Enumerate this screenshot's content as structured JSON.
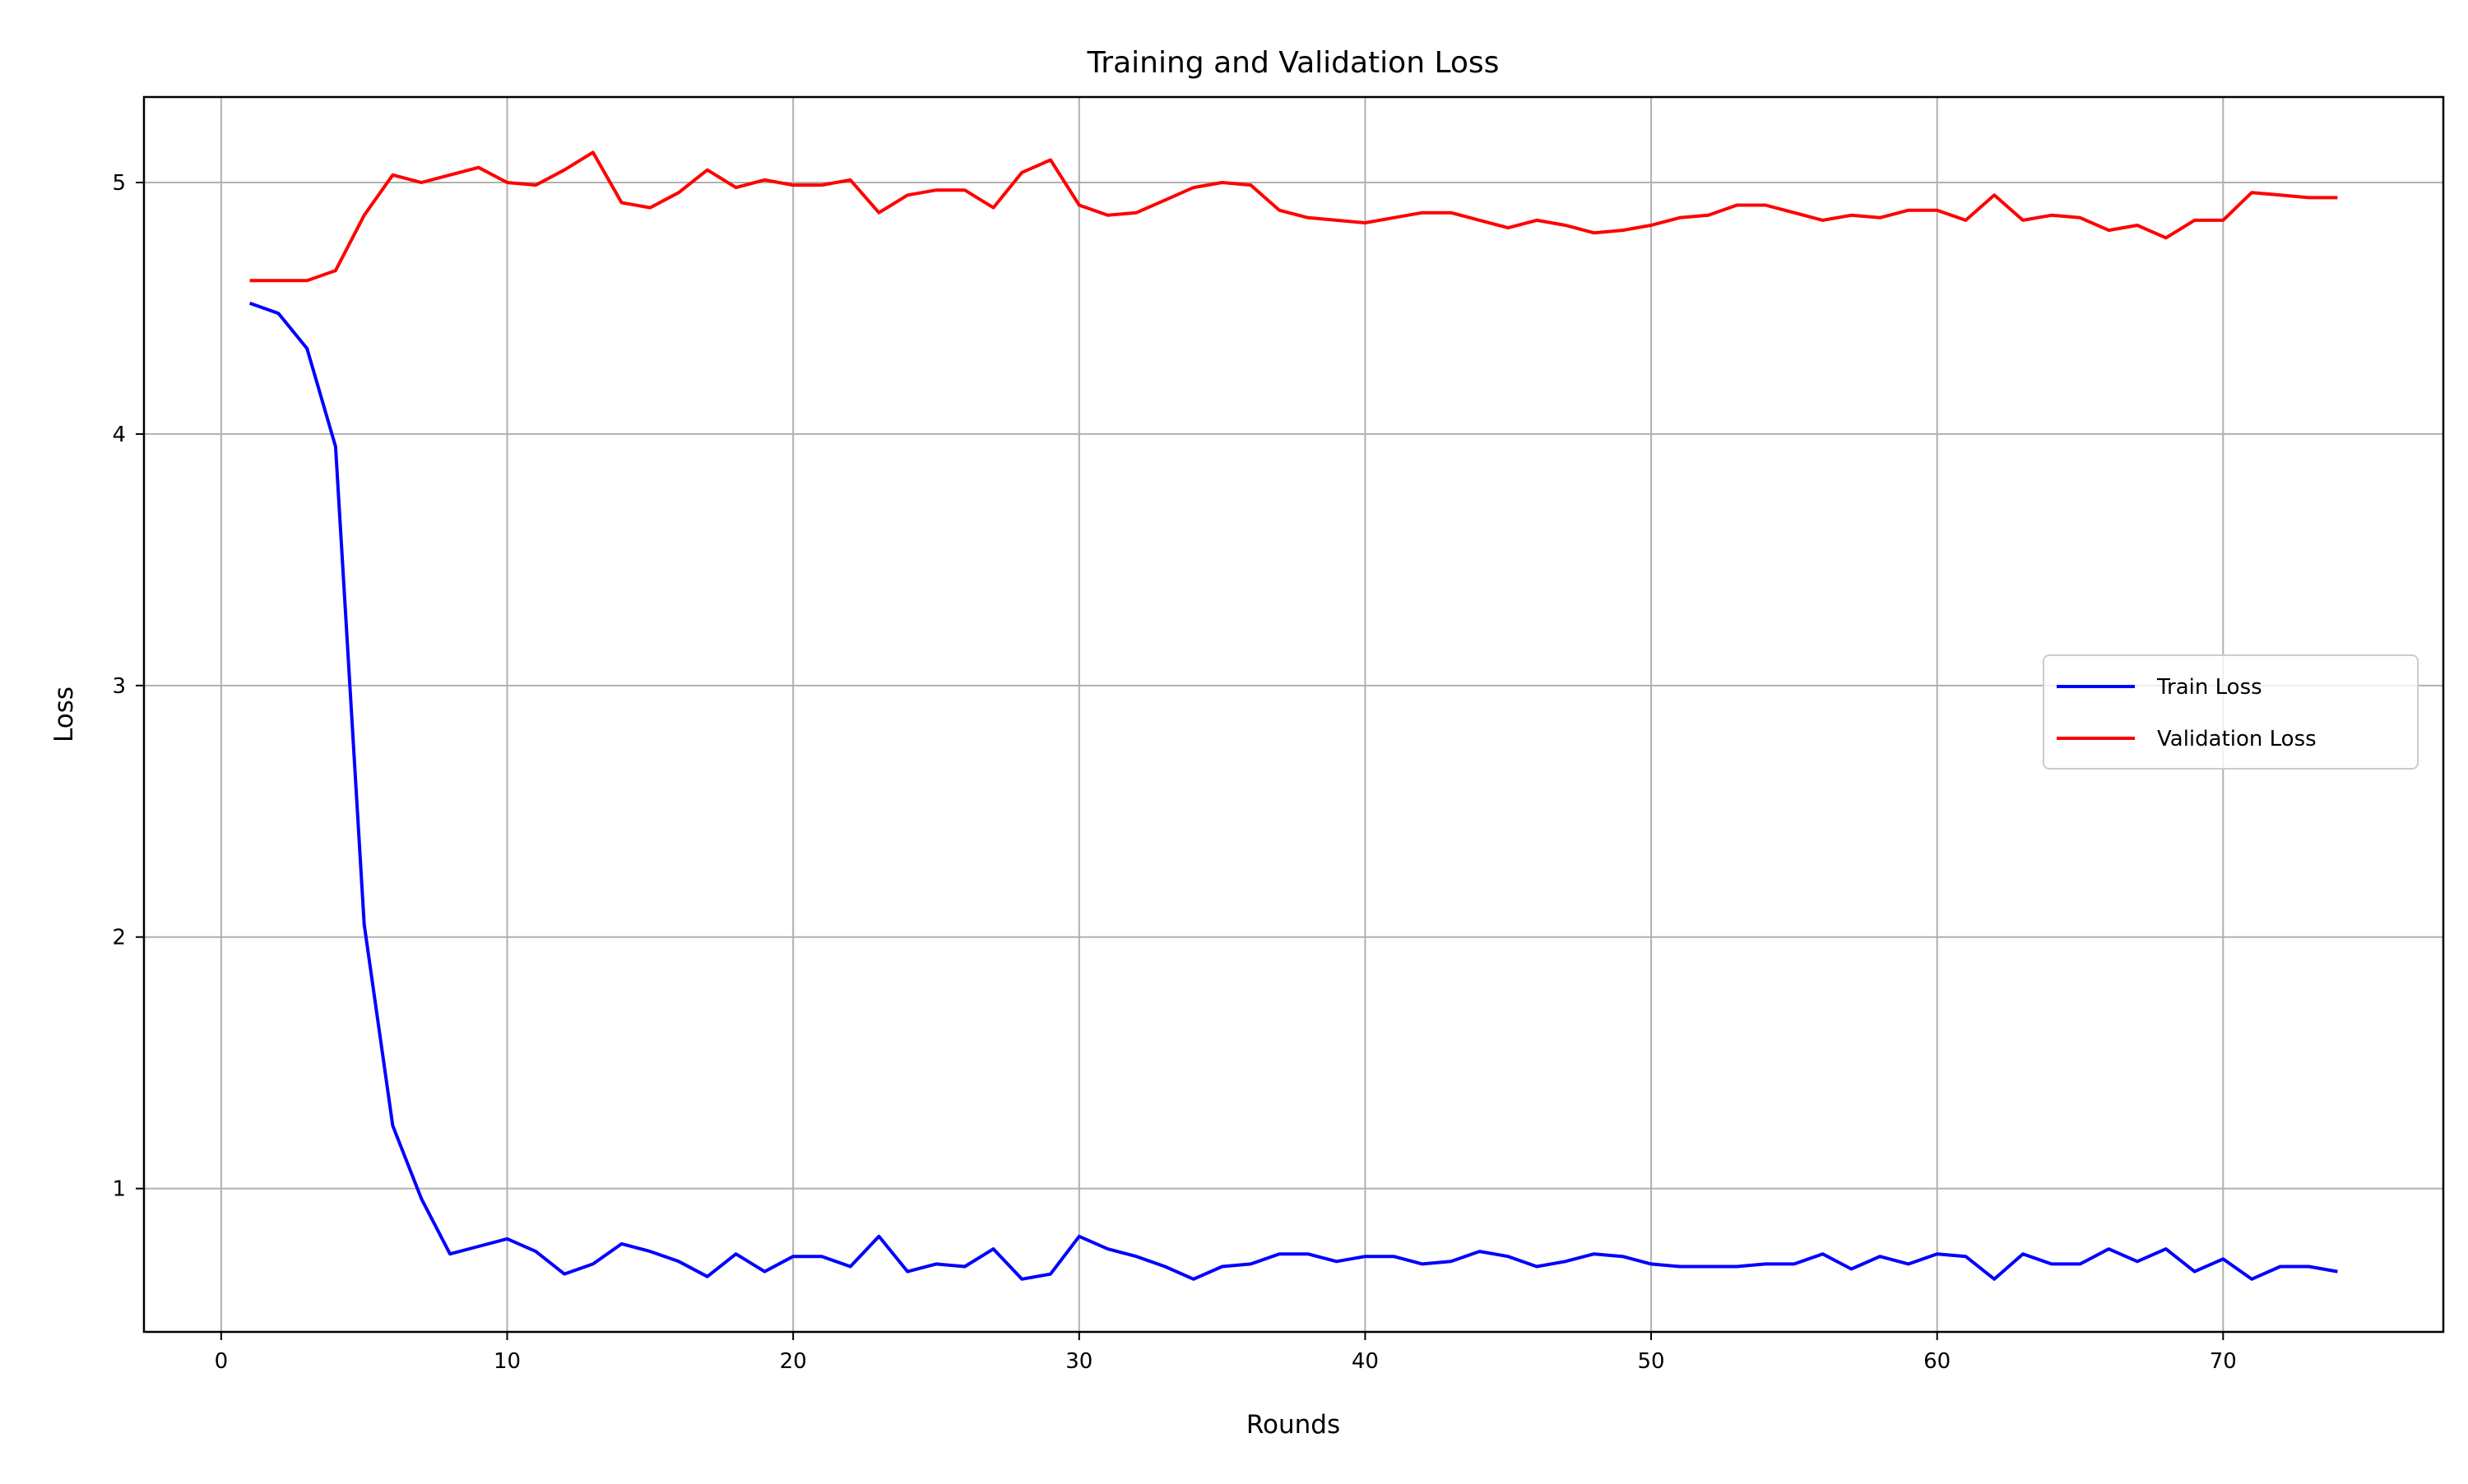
{
  "chart_data": {
    "type": "line",
    "title": "Training and Validation Loss",
    "xlabel": "Rounds",
    "ylabel": "Loss",
    "xlim": [
      -2.7,
      77.7
    ],
    "ylim": [
      0.43,
      5.34
    ],
    "xticks": [
      0,
      10,
      20,
      30,
      40,
      50,
      60,
      70
    ],
    "yticks": [
      1,
      2,
      3,
      4,
      5
    ],
    "grid": true,
    "legend_position": "center-right",
    "x": [
      1,
      2,
      3,
      4,
      5,
      6,
      7,
      8,
      9,
      10,
      11,
      12,
      13,
      14,
      15,
      16,
      17,
      18,
      19,
      20,
      21,
      22,
      23,
      24,
      25,
      26,
      27,
      28,
      29,
      30,
      31,
      32,
      33,
      34,
      35,
      36,
      37,
      38,
      39,
      40,
      41,
      42,
      43,
      44,
      45,
      46,
      47,
      48,
      49,
      50,
      51,
      52,
      53,
      54,
      55,
      56,
      57,
      58,
      59,
      60,
      61,
      62,
      63,
      64,
      65,
      66,
      67,
      68,
      69,
      70,
      71,
      72,
      73,
      74
    ],
    "series": [
      {
        "name": "Train Loss",
        "color": "#0000ff",
        "values": [
          4.52,
          4.48,
          4.34,
          3.95,
          2.05,
          1.25,
          0.96,
          0.74,
          0.77,
          0.8,
          0.75,
          0.66,
          0.7,
          0.78,
          0.75,
          0.71,
          0.65,
          0.74,
          0.67,
          0.73,
          0.73,
          0.69,
          0.81,
          0.67,
          0.7,
          0.69,
          0.76,
          0.64,
          0.66,
          0.81,
          0.76,
          0.73,
          0.69,
          0.64,
          0.69,
          0.7,
          0.74,
          0.74,
          0.71,
          0.73,
          0.73,
          0.7,
          0.71,
          0.75,
          0.73,
          0.69,
          0.71,
          0.74,
          0.73,
          0.7,
          0.69,
          0.69,
          0.69,
          0.7,
          0.7,
          0.74,
          0.68,
          0.73,
          0.7,
          0.74,
          0.73,
          0.64,
          0.74,
          0.7,
          0.7,
          0.76,
          0.71,
          0.76,
          0.67,
          0.72,
          0.64,
          0.69,
          0.69,
          0.67
        ]
      },
      {
        "name": "Validation Loss",
        "color": "#ff0000",
        "values": [
          4.61,
          4.61,
          4.61,
          4.65,
          4.87,
          5.03,
          5.0,
          5.03,
          5.06,
          5.0,
          4.99,
          5.05,
          5.12,
          4.92,
          4.9,
          4.96,
          5.05,
          4.98,
          5.01,
          4.99,
          4.99,
          5.01,
          4.88,
          4.95,
          4.97,
          4.97,
          4.9,
          5.04,
          5.09,
          4.91,
          4.87,
          4.88,
          4.93,
          4.98,
          5.0,
          4.99,
          4.89,
          4.86,
          4.85,
          4.84,
          4.86,
          4.88,
          4.88,
          4.85,
          4.82,
          4.85,
          4.83,
          4.8,
          4.81,
          4.83,
          4.86,
          4.87,
          4.91,
          4.91,
          4.88,
          4.85,
          4.87,
          4.86,
          4.89,
          4.89,
          4.85,
          4.95,
          4.85,
          4.87,
          4.86,
          4.81,
          4.83,
          4.78,
          4.85,
          4.85,
          4.96,
          4.95,
          4.94,
          4.94
        ]
      }
    ]
  }
}
